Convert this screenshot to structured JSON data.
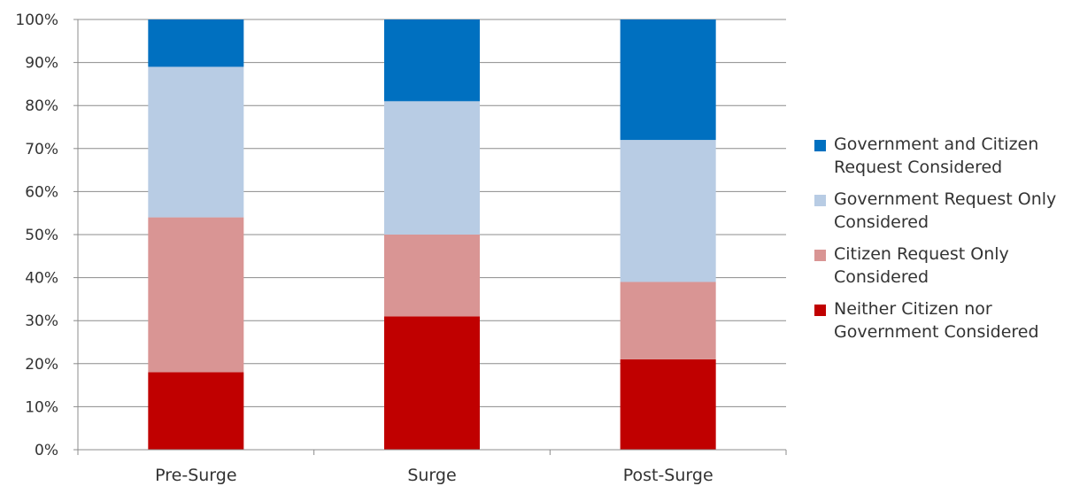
{
  "chart_data": {
    "type": "bar",
    "stacked": true,
    "categories": [
      "Pre-Surge",
      "Surge",
      "Post-Surge"
    ],
    "series": [
      {
        "name": "Neither Citizen nor Government Considered",
        "color": "#C00000",
        "values": [
          18,
          31,
          21
        ]
      },
      {
        "name": "Citizen Request Only Considered",
        "color": "#D99594",
        "values": [
          36,
          19,
          18
        ]
      },
      {
        "name": "Government Request Only Considered",
        "color": "#B8CCE4",
        "values": [
          35,
          31,
          33
        ]
      },
      {
        "name": "Government and Citizen Request Considered",
        "color": "#0070C0",
        "values": [
          11,
          19,
          28
        ]
      }
    ],
    "ylim": [
      0,
      100
    ],
    "yticks": [
      "0%",
      "10%",
      "20%",
      "30%",
      "40%",
      "50%",
      "60%",
      "70%",
      "80%",
      "90%",
      "100%"
    ],
    "grid": true,
    "legend_position": "right",
    "legend": [
      {
        "label": "Government and Citizen\nRequest Considered",
        "color": "#0070C0"
      },
      {
        "label": "Government Request Only\nConsidered",
        "color": "#B8CCE4"
      },
      {
        "label": "Citizen Request Only\nConsidered",
        "color": "#D99594"
      },
      {
        "label": "Neither Citizen nor\nGovernment Considered",
        "color": "#C00000"
      }
    ]
  }
}
